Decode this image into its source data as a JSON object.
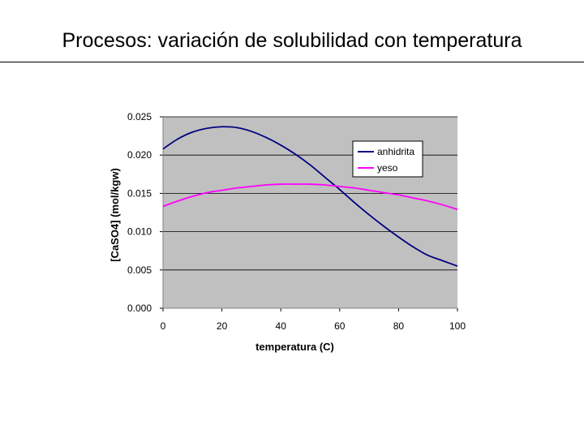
{
  "slide": {
    "title": "Procesos: variación de solubilidad con temperatura"
  },
  "chart_data": {
    "type": "line",
    "xlabel": "temperatura (C)",
    "ylabel": "[CaSO4] (mol/kgw)",
    "xlim": [
      0,
      100
    ],
    "ylim": [
      0,
      0.025
    ],
    "xticks": [
      "0",
      "20",
      "40",
      "60",
      "80",
      "100"
    ],
    "yticks": [
      "0.000",
      "0.005",
      "0.010",
      "0.015",
      "0.020",
      "0.025"
    ],
    "grid": true,
    "legend_position": "right",
    "plot_background": "#c0c0c0",
    "series": [
      {
        "name": "anhidrita",
        "color": "#000080",
        "x": [
          0,
          5,
          10,
          15,
          20,
          25,
          30,
          35,
          40,
          45,
          50,
          55,
          60,
          65,
          70,
          75,
          80,
          85,
          90,
          95,
          100
        ],
        "y": [
          0.0208,
          0.0221,
          0.023,
          0.0235,
          0.0237,
          0.0236,
          0.0231,
          0.0223,
          0.0213,
          0.0201,
          0.0187,
          0.0171,
          0.0155,
          0.0138,
          0.0122,
          0.0107,
          0.0093,
          0.008,
          0.0069,
          0.0062,
          0.0055
        ]
      },
      {
        "name": "yeso",
        "color": "#ff00ff",
        "x": [
          0,
          5,
          10,
          15,
          20,
          25,
          30,
          35,
          40,
          45,
          50,
          55,
          60,
          65,
          70,
          75,
          80,
          85,
          90,
          95,
          100
        ],
        "y": [
          0.0133,
          0.014,
          0.0146,
          0.0151,
          0.0154,
          0.0157,
          0.0159,
          0.0161,
          0.0162,
          0.0162,
          0.0162,
          0.0161,
          0.0159,
          0.0157,
          0.0154,
          0.0151,
          0.0148,
          0.0144,
          0.014,
          0.0135,
          0.0129
        ]
      }
    ]
  }
}
